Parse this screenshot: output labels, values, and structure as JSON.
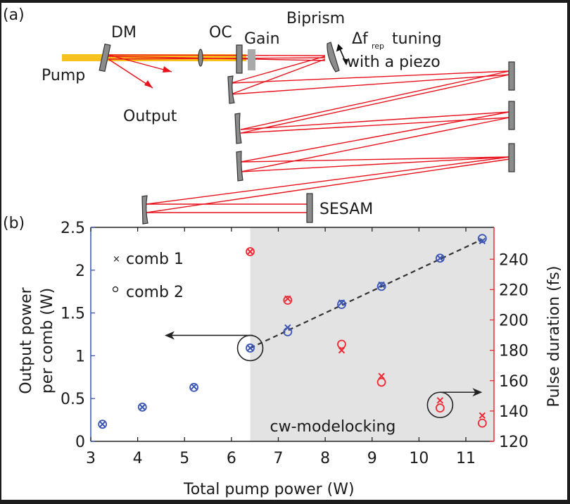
{
  "panel_a": {
    "label": "(a)",
    "labels": {
      "dm": "DM",
      "oc": "OC",
      "gain": "Gain",
      "biprism": "Biprism",
      "delta": "Δf",
      "rep": "rep",
      "tuning": "tuning",
      "piezo": "with a piezo",
      "pump": "Pump",
      "output": "Output",
      "sesam": "SESAM"
    },
    "colors": {
      "pump_beam": "#f8c21c",
      "laser_beam": "#e8101a",
      "mirror": "#8a8a8a",
      "gain": "#a9a9a9"
    }
  },
  "panel_b": {
    "label": "(b)"
  },
  "chart_data": {
    "type": "scatter",
    "title": "",
    "xlabel": "Total pump power (W)",
    "ylabel": "Output power per comb (W)",
    "ylabel_lines": [
      "Output power",
      "per comb (W)"
    ],
    "y2label": "Pulse duration (fs)",
    "xlim": [
      3,
      11.6
    ],
    "ylim": [
      0,
      2.5
    ],
    "y2lim": [
      120,
      261
    ],
    "xticks": [
      3,
      4,
      5,
      6,
      7,
      8,
      9,
      10,
      11
    ],
    "xtick_labels": [
      "3",
      "4",
      "5",
      "6",
      "7",
      "8",
      "9",
      "10",
      "11"
    ],
    "yticks": [
      0,
      0.5,
      1,
      1.5,
      2,
      2.5
    ],
    "ytick_labels": [
      "0",
      "0.5",
      "1",
      "1.5",
      "2",
      "2.5"
    ],
    "y2ticks": [
      120,
      140,
      160,
      180,
      200,
      220,
      240
    ],
    "y2tick_labels": [
      "120",
      "140",
      "160",
      "180",
      "200",
      "220",
      "240"
    ],
    "grid": false,
    "legend": {
      "placement": "top-left",
      "entries": [
        {
          "marker": "x",
          "label": "comb 1"
        },
        {
          "marker": "o",
          "label": "comb 2"
        }
      ]
    },
    "shaded_region": {
      "x_from": 6.4,
      "x_to": 11.6,
      "label": "cw-modelocking",
      "color": "#e3e3e3"
    },
    "colors": {
      "power": "#3a55b4",
      "pulse": "#ee2a35",
      "left_axis": "#3a55b4",
      "right_axis": "#ee2a35",
      "fit": "#333333"
    },
    "series": [
      {
        "name": "comb 1 output power",
        "axis": "left",
        "marker": "x",
        "x": [
          3.25,
          4.1,
          5.2,
          6.4,
          7.2,
          8.35,
          9.2,
          10.45,
          11.35
        ],
        "y": [
          0.2,
          0.4,
          0.64,
          1.09,
          1.33,
          1.62,
          1.83,
          2.14,
          2.34
        ]
      },
      {
        "name": "comb 2 output power",
        "axis": "left",
        "marker": "o",
        "x": [
          3.25,
          4.1,
          5.2,
          6.4,
          7.2,
          8.35,
          9.2,
          10.45,
          11.35
        ],
        "y": [
          0.2,
          0.4,
          0.63,
          1.09,
          1.28,
          1.6,
          1.81,
          2.14,
          2.37
        ]
      },
      {
        "name": "comb 1 pulse duration",
        "axis": "right",
        "marker": "x",
        "x": [
          6.4,
          7.2,
          8.35,
          9.2,
          10.45,
          11.35
        ],
        "y": [
          245,
          214,
          180,
          163,
          147,
          137
        ]
      },
      {
        "name": "comb 2 pulse duration",
        "axis": "right",
        "marker": "o",
        "x": [
          6.4,
          7.2,
          8.35,
          9.2,
          10.45,
          11.35
        ],
        "y": [
          245,
          213,
          184,
          159,
          142,
          132
        ]
      }
    ],
    "fit_line": {
      "style": "dashed",
      "x": [
        6.4,
        11.35
      ],
      "y": [
        1.09,
        2.36
      ]
    },
    "annotations": [
      {
        "type": "circle-arrow",
        "target_x": 6.4,
        "target_y": 1.09,
        "axis": "left",
        "direction": "left"
      },
      {
        "type": "circle-arrow",
        "target_x": 10.45,
        "target_y": 144,
        "axis": "right",
        "direction": "right"
      }
    ]
  }
}
